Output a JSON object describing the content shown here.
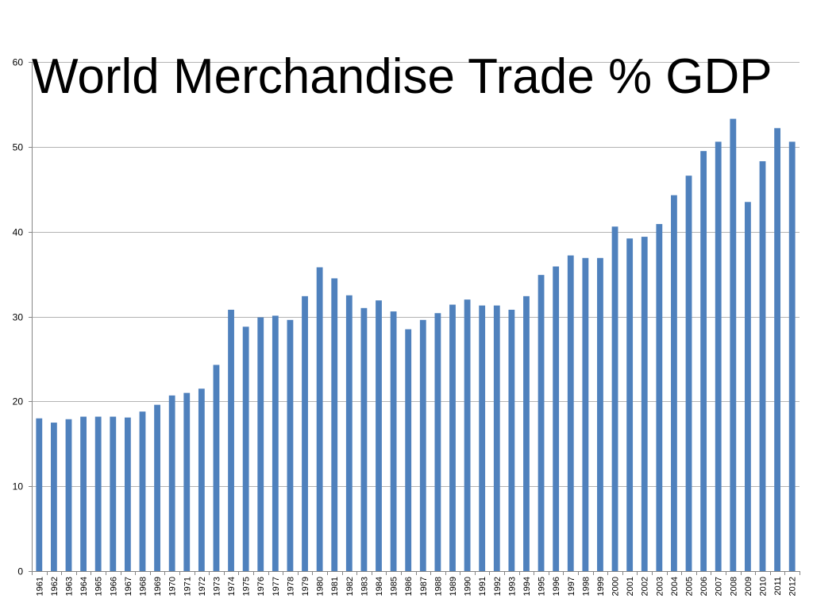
{
  "chart_data": {
    "type": "bar",
    "title": "World Merchandise Trade % GDP",
    "xlabel": "",
    "ylabel": "",
    "ylim": [
      0,
      60
    ],
    "yticks": [
      0,
      10,
      20,
      30,
      40,
      50,
      60
    ],
    "grid": true,
    "legend": "none",
    "bar_color": "#4f81bd",
    "grid_color": "#b3b3b3",
    "categories": [
      "1961",
      "1962",
      "1963",
      "1964",
      "1965",
      "1966",
      "1967",
      "1968",
      "1969",
      "1970",
      "1971",
      "1972",
      "1973",
      "1974",
      "1975",
      "1976",
      "1977",
      "1978",
      "1979",
      "1980",
      "1981",
      "1982",
      "1983",
      "1984",
      "1985",
      "1986",
      "1987",
      "1988",
      "1989",
      "1990",
      "1991",
      "1992",
      "1993",
      "1994",
      "1995",
      "1996",
      "1997",
      "1998",
      "1999",
      "2000",
      "2001",
      "2002",
      "2003",
      "2004",
      "2005",
      "2006",
      "2007",
      "2008",
      "2009",
      "2010",
      "2011",
      "2012"
    ],
    "values": [
      18.0,
      17.5,
      17.9,
      18.2,
      18.2,
      18.2,
      18.1,
      18.8,
      19.6,
      20.7,
      21.0,
      21.5,
      24.3,
      30.8,
      28.8,
      29.9,
      30.1,
      29.6,
      32.4,
      35.8,
      34.5,
      32.5,
      31.0,
      31.9,
      30.6,
      28.5,
      29.6,
      30.4,
      31.4,
      32.0,
      31.3,
      31.3,
      30.8,
      32.4,
      34.9,
      35.9,
      37.2,
      36.9,
      36.9,
      40.6,
      39.2,
      39.4,
      40.9,
      44.3,
      46.6,
      49.5,
      50.6,
      53.3,
      43.5,
      48.3,
      52.2,
      50.6
    ]
  }
}
